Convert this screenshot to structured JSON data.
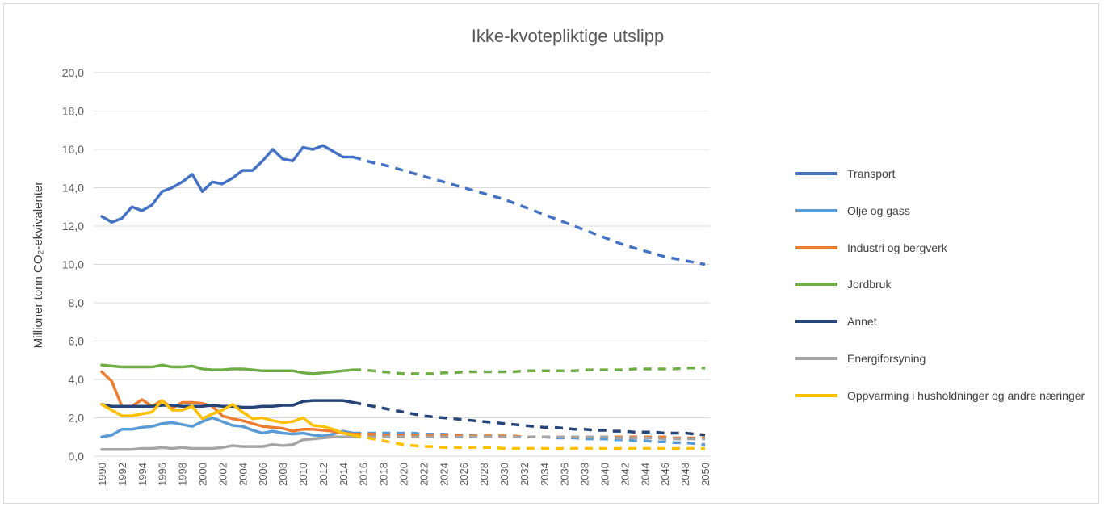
{
  "chart_data": {
    "type": "line",
    "title": "Ikke-kvotepliktige utslipp",
    "y_label": "Millioner tonn CO₂-ekvivalenter",
    "x": [
      1990,
      1991,
      1992,
      1993,
      1994,
      1995,
      1996,
      1997,
      1998,
      1999,
      2000,
      2001,
      2002,
      2003,
      2004,
      2005,
      2006,
      2007,
      2008,
      2009,
      2010,
      2011,
      2012,
      2013,
      2014,
      2015,
      2016,
      2017,
      2018,
      2019,
      2020,
      2021,
      2022,
      2023,
      2024,
      2025,
      2026,
      2027,
      2028,
      2029,
      2030,
      2031,
      2032,
      2033,
      2034,
      2035,
      2036,
      2037,
      2038,
      2039,
      2040,
      2041,
      2042,
      2043,
      2044,
      2045,
      2046,
      2047,
      2048,
      2049,
      2050
    ],
    "xlim": [
      1990,
      2050
    ],
    "xticks": [
      1990,
      1992,
      1994,
      1996,
      1998,
      2000,
      2002,
      2004,
      2006,
      2008,
      2010,
      2012,
      2014,
      2016,
      2018,
      2020,
      2022,
      2024,
      2026,
      2028,
      2030,
      2032,
      2034,
      2036,
      2038,
      2040,
      2042,
      2044,
      2046,
      2048,
      2050
    ],
    "ylim": [
      0,
      20
    ],
    "yticks": [
      {
        "value": 0,
        "label": "0,0"
      },
      {
        "value": 2,
        "label": "2,0"
      },
      {
        "value": 4,
        "label": "4,0"
      },
      {
        "value": 6,
        "label": "6,0"
      },
      {
        "value": 8,
        "label": "8,0"
      },
      {
        "value": 10,
        "label": "10,0"
      },
      {
        "value": 12,
        "label": "12,0"
      },
      {
        "value": 14,
        "label": "14,0"
      },
      {
        "value": 16,
        "label": "16,0"
      },
      {
        "value": 18,
        "label": "18,0"
      },
      {
        "value": 20,
        "label": "20,0"
      }
    ],
    "grid": true,
    "legend": "right",
    "projection_from": 2015,
    "series": [
      {
        "name": "Transport",
        "color": "#4472c4",
        "values": [
          12.5,
          12.2,
          12.4,
          13.0,
          12.8,
          13.1,
          13.8,
          14.0,
          14.3,
          14.7,
          13.8,
          14.3,
          14.2,
          14.5,
          14.9,
          14.9,
          15.4,
          16.0,
          15.5,
          15.4,
          16.1,
          16.0,
          16.2,
          15.9,
          15.6,
          15.6,
          15.45,
          15.3,
          15.2,
          15.05,
          14.9,
          14.75,
          14.6,
          14.45,
          14.3,
          14.15,
          14.0,
          13.85,
          13.7,
          13.55,
          13.4,
          13.2,
          13.0,
          12.8,
          12.6,
          12.4,
          12.2,
          12.0,
          11.8,
          11.6,
          11.4,
          11.2,
          11.0,
          10.85,
          10.7,
          10.55,
          10.4,
          10.3,
          10.2,
          10.1,
          10.0
        ]
      },
      {
        "name": "Olje og gass",
        "color": "#5b9bd5",
        "values": [
          1.0,
          1.1,
          1.4,
          1.4,
          1.5,
          1.55,
          1.7,
          1.75,
          1.65,
          1.55,
          1.8,
          2.0,
          1.8,
          1.6,
          1.55,
          1.35,
          1.2,
          1.3,
          1.2,
          1.15,
          1.2,
          1.1,
          1.05,
          1.15,
          1.3,
          1.2,
          1.2,
          1.2,
          1.2,
          1.2,
          1.2,
          1.2,
          1.15,
          1.15,
          1.15,
          1.1,
          1.1,
          1.1,
          1.05,
          1.05,
          1.05,
          1.0,
          1.0,
          1.0,
          1.0,
          0.95,
          0.95,
          0.95,
          0.9,
          0.9,
          0.9,
          0.85,
          0.85,
          0.8,
          0.8,
          0.75,
          0.75,
          0.7,
          0.7,
          0.65,
          0.6
        ]
      },
      {
        "name": "Industri og bergverk",
        "color": "#ed7d31",
        "values": [
          4.4,
          3.9,
          2.6,
          2.6,
          2.95,
          2.6,
          2.9,
          2.5,
          2.8,
          2.8,
          2.75,
          2.6,
          2.1,
          1.95,
          1.85,
          1.7,
          1.55,
          1.5,
          1.45,
          1.3,
          1.4,
          1.4,
          1.35,
          1.3,
          1.2,
          1.15,
          1.15,
          1.15,
          1.1,
          1.1,
          1.1,
          1.1,
          1.1,
          1.1,
          1.1,
          1.1,
          1.05,
          1.05,
          1.05,
          1.05,
          1.05,
          1.05,
          1.0,
          1.0,
          1.0,
          1.0,
          1.0,
          1.0,
          1.0,
          1.0,
          1.0,
          1.0,
          1.0,
          1.0,
          1.0,
          1.0,
          1.0,
          0.95,
          0.95,
          0.95,
          0.95
        ]
      },
      {
        "name": "Jordbruk",
        "color": "#70ad47",
        "values": [
          4.75,
          4.7,
          4.65,
          4.65,
          4.65,
          4.65,
          4.75,
          4.65,
          4.65,
          4.7,
          4.55,
          4.5,
          4.5,
          4.55,
          4.55,
          4.5,
          4.45,
          4.45,
          4.45,
          4.45,
          4.35,
          4.3,
          4.35,
          4.4,
          4.45,
          4.5,
          4.5,
          4.45,
          4.4,
          4.35,
          4.3,
          4.3,
          4.3,
          4.3,
          4.35,
          4.35,
          4.4,
          4.4,
          4.4,
          4.4,
          4.4,
          4.4,
          4.45,
          4.45,
          4.45,
          4.45,
          4.45,
          4.45,
          4.5,
          4.5,
          4.5,
          4.5,
          4.5,
          4.55,
          4.55,
          4.55,
          4.55,
          4.55,
          4.6,
          4.6,
          4.6
        ]
      },
      {
        "name": "Annet",
        "color": "#264478",
        "values": [
          2.7,
          2.6,
          2.6,
          2.6,
          2.6,
          2.6,
          2.65,
          2.65,
          2.6,
          2.6,
          2.6,
          2.65,
          2.6,
          2.6,
          2.55,
          2.55,
          2.6,
          2.6,
          2.65,
          2.65,
          2.85,
          2.9,
          2.9,
          2.9,
          2.9,
          2.8,
          2.7,
          2.6,
          2.5,
          2.4,
          2.3,
          2.2,
          2.1,
          2.05,
          2.0,
          1.95,
          1.9,
          1.85,
          1.8,
          1.75,
          1.7,
          1.65,
          1.6,
          1.55,
          1.5,
          1.5,
          1.45,
          1.4,
          1.4,
          1.35,
          1.35,
          1.3,
          1.3,
          1.25,
          1.25,
          1.25,
          1.2,
          1.2,
          1.2,
          1.15,
          1.1
        ]
      },
      {
        "name": "Energiforsyning",
        "color": "#a5a5a5",
        "values": [
          0.35,
          0.35,
          0.35,
          0.35,
          0.4,
          0.4,
          0.45,
          0.4,
          0.45,
          0.4,
          0.4,
          0.4,
          0.45,
          0.55,
          0.5,
          0.5,
          0.5,
          0.6,
          0.55,
          0.6,
          0.85,
          0.9,
          0.95,
          1.0,
          1.0,
          1.0,
          1.0,
          1.0,
          1.0,
          1.0,
          1.0,
          1.0,
          1.0,
          1.0,
          1.0,
          1.0,
          1.0,
          1.0,
          1.0,
          1.0,
          1.0,
          1.0,
          1.0,
          1.0,
          1.0,
          1.0,
          1.0,
          1.0,
          1.0,
          1.0,
          1.0,
          0.95,
          0.95,
          0.95,
          0.95,
          0.95,
          0.9,
          0.9,
          0.9,
          0.9,
          0.9
        ]
      },
      {
        "name": "Oppvarming i husholdninger og andre næringer",
        "color": "#ffc000",
        "values": [
          2.7,
          2.4,
          2.1,
          2.1,
          2.2,
          2.3,
          2.9,
          2.4,
          2.4,
          2.6,
          1.95,
          2.2,
          2.4,
          2.7,
          2.3,
          1.95,
          2.0,
          1.85,
          1.75,
          1.8,
          2.0,
          1.6,
          1.55,
          1.4,
          1.2,
          1.1,
          1.0,
          0.9,
          0.8,
          0.7,
          0.6,
          0.55,
          0.5,
          0.5,
          0.45,
          0.45,
          0.45,
          0.45,
          0.45,
          0.45,
          0.4,
          0.4,
          0.4,
          0.4,
          0.4,
          0.4,
          0.4,
          0.4,
          0.4,
          0.4,
          0.4,
          0.4,
          0.4,
          0.4,
          0.4,
          0.4,
          0.4,
          0.4,
          0.4,
          0.4,
          0.4
        ]
      }
    ]
  }
}
